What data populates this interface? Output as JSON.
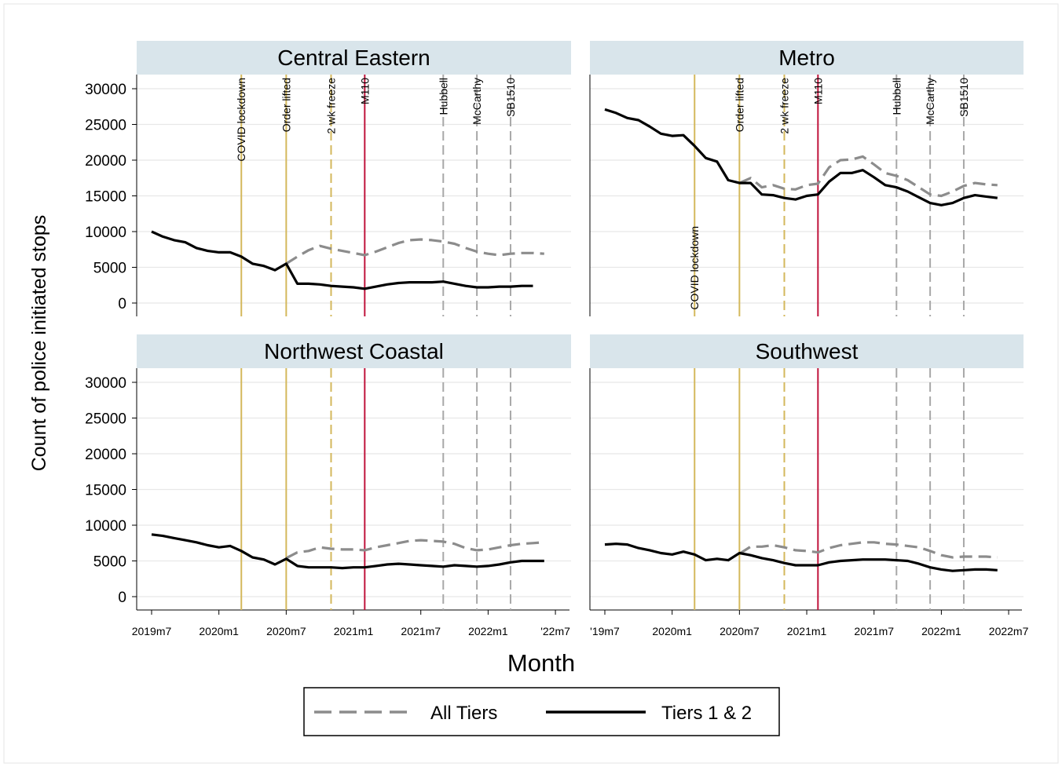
{
  "chart_data": {
    "type": "line",
    "ylabel": "Count of police initiated stops",
    "xlabel": "Month",
    "ylim": [
      0,
      30000
    ],
    "yticks": [
      "30000",
      "25000",
      "20000",
      "15000",
      "10000",
      "5000",
      "0"
    ],
    "grid": true,
    "legend_position": "bottom",
    "legend": [
      {
        "name": "All Tiers",
        "style": "dashed",
        "color": "#8c8c8c"
      },
      {
        "name": "Tiers 1 & 2",
        "style": "solid",
        "color": "#000000"
      }
    ],
    "events": [
      {
        "label": "COVID lockdown",
        "date": "2020-03",
        "color": "#d4b85c",
        "style": "solid"
      },
      {
        "label": "Order lifted",
        "date": "2020-07",
        "color": "#d4b85c",
        "style": "solid"
      },
      {
        "label": "2 wk freeze",
        "date": "2020-11",
        "color": "#d4b85c",
        "style": "dashed"
      },
      {
        "label": "M110",
        "date": "2021-02",
        "color": "#c0143c",
        "style": "solid"
      },
      {
        "label": "Hubbell",
        "date": "2021-09",
        "color": "#a8a8a8",
        "style": "dashed"
      },
      {
        "label": "McCarthy",
        "date": "2021-12",
        "color": "#a8a8a8",
        "style": "dashed"
      },
      {
        "label": "SB1510",
        "date": "2022-03",
        "color": "#a8a8a8",
        "style": "dashed"
      }
    ],
    "panels": [
      {
        "title": "Central Eastern",
        "x_tick_labels": [
          "2019m7",
          "2020m1",
          "2020m7",
          "2021m1",
          "2021m7",
          "2022m1",
          "'22m7"
        ],
        "series": [
          {
            "name": "All Tiers",
            "x_start": "2020-07",
            "values": [
              5500,
              6500,
              7400,
              8000,
              7600,
              7300,
              7000,
              6700,
              7200,
              7800,
              8400,
              8800,
              8900,
              8800,
              8600,
              8300,
              7700,
              7200,
              6900,
              6700,
              6900,
              7000,
              7000,
              6900
            ]
          },
          {
            "name": "Tiers 1 & 2",
            "x_start": "2019-07",
            "values": [
              10000,
              9300,
              8800,
              8500,
              7700,
              7300,
              7100,
              7100,
              6500,
              5500,
              5200,
              4600,
              5500,
              2700,
              2700,
              2600,
              2400,
              2300,
              2200,
              2000,
              2300,
              2600,
              2800,
              2900,
              2900,
              2900,
              3000,
              2700,
              2400,
              2200,
              2200,
              2300,
              2300,
              2400,
              2400
            ]
          }
        ]
      },
      {
        "title": "Metro",
        "x_tick_labels": [
          "'19m7",
          "2020m1",
          "2020m7",
          "2021m1",
          "2021m7",
          "2022m1",
          "2022m7"
        ],
        "series": [
          {
            "name": "All Tiers",
            "x_start": "2020-07",
            "values": [
              16800,
              17500,
              16200,
              16500,
              16000,
              15900,
              16500,
              16700,
              19000,
              20000,
              20100,
              20500,
              19400,
              18200,
              17800,
              17200,
              16200,
              15200,
              15000,
              15600,
              16400,
              16800,
              16600,
              16500
            ]
          },
          {
            "name": "Tiers 1 & 2",
            "x_start": "2019-07",
            "values": [
              27100,
              26600,
              25900,
              25600,
              24700,
              23700,
              23400,
              23500,
              22000,
              20300,
              19800,
              17200,
              16800,
              16800,
              15200,
              15100,
              14700,
              14500,
              15000,
              15200,
              17000,
              18200,
              18200,
              18600,
              17600,
              16500,
              16200,
              15600,
              14800,
              14000,
              13700,
              14000,
              14700,
              15100,
              14900,
              14700
            ]
          }
        ]
      },
      {
        "title": "Northwest Coastal",
        "x_tick_labels": [
          "2019m7",
          "2020m1",
          "2020m7",
          "2021m1",
          "2021m7",
          "2022m1",
          "'22m7"
        ],
        "series": [
          {
            "name": "All Tiers",
            "x_start": "2020-07",
            "values": [
              5400,
              6200,
              6400,
              6900,
              6700,
              6600,
              6600,
              6500,
              6900,
              7200,
              7500,
              7800,
              7900,
              7800,
              7700,
              7400,
              6800,
              6500,
              6600,
              6900,
              7200,
              7400,
              7500,
              7600
            ]
          },
          {
            "name": "Tiers 1 & 2",
            "x_start": "2019-07",
            "values": [
              8700,
              8500,
              8200,
              7900,
              7600,
              7200,
              6900,
              7100,
              6400,
              5500,
              5200,
              4500,
              5300,
              4300,
              4100,
              4100,
              4100,
              4000,
              4100,
              4100,
              4300,
              4500,
              4600,
              4500,
              4400,
              4300,
              4200,
              4400,
              4300,
              4200,
              4300,
              4500,
              4800,
              5000,
              5000,
              5000
            ]
          }
        ]
      },
      {
        "title": "Southwest",
        "x_tick_labels": [
          "'19m7",
          "2020m1",
          "2020m7",
          "2021m1",
          "2021m7",
          "2022m1",
          "2022m7"
        ],
        "series": [
          {
            "name": "All Tiers",
            "x_start": "2020-07",
            "values": [
              6000,
              7000,
              7000,
              7200,
              6900,
              6500,
              6400,
              6200,
              6800,
              7200,
              7400,
              7600,
              7600,
              7400,
              7300,
              7100,
              6900,
              6400,
              5800,
              5500,
              5600,
              5600,
              5600,
              5500
            ]
          },
          {
            "name": "Tiers 1 & 2",
            "x_start": "2019-07",
            "values": [
              7300,
              7400,
              7300,
              6800,
              6500,
              6100,
              5900,
              6300,
              5900,
              5100,
              5300,
              5100,
              6100,
              5800,
              5400,
              5100,
              4700,
              4400,
              4400,
              4400,
              4800,
              5000,
              5100,
              5200,
              5200,
              5200,
              5100,
              5000,
              4600,
              4100,
              3800,
              3600,
              3700,
              3800,
              3800,
              3700
            ]
          }
        ]
      }
    ]
  }
}
